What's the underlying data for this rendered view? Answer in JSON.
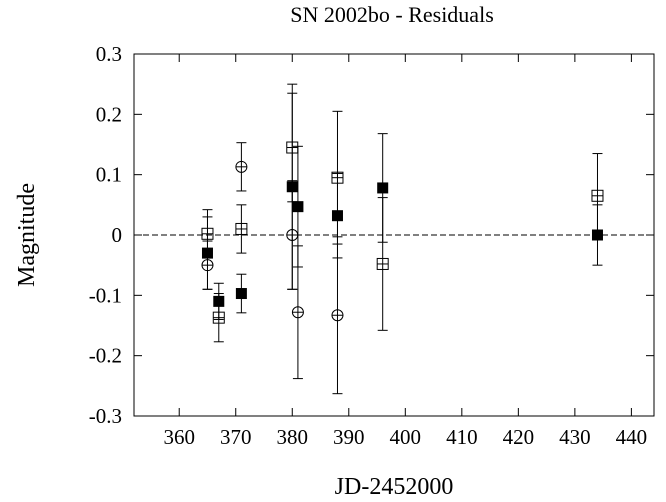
{
  "chart_data": {
    "type": "scatter",
    "title": "SN 2002bo - Residuals",
    "xlabel": "JD-2452000",
    "ylabel": "Magnitude",
    "xlim": [
      352,
      444
    ],
    "ylim": [
      -0.3,
      0.3
    ],
    "xticks": [
      360,
      370,
      380,
      390,
      400,
      410,
      420,
      430,
      440
    ],
    "yticks": [
      0.3,
      0.2,
      0.1,
      0,
      -0.1,
      -0.2,
      -0.3
    ],
    "xtick_labels": [
      "360",
      "370",
      "380",
      "390",
      "400",
      "410",
      "420",
      "430",
      "440"
    ],
    "ytick_labels": [
      "0.3",
      "0.2",
      "0.1",
      "0",
      "-0.1",
      "-0.2",
      "-0.3"
    ],
    "reference_line": 0,
    "grid": false,
    "series": [
      {
        "marker": "filled-square",
        "points": [
          {
            "x": 365,
            "y": -0.03,
            "err": 0.06
          },
          {
            "x": 367,
            "y": -0.11,
            "err": 0.03
          },
          {
            "x": 371,
            "y": -0.097,
            "err": 0.032
          },
          {
            "x": 380,
            "y": 0.08,
            "err": 0.17
          },
          {
            "x": 381,
            "y": 0.047,
            "err": 0.1
          },
          {
            "x": 388,
            "y": 0.032,
            "err": 0.07
          },
          {
            "x": 396,
            "y": 0.078,
            "err": 0.09
          },
          {
            "x": 434,
            "y": 0.0,
            "err": 0.05
          }
        ]
      },
      {
        "marker": "open-square",
        "points": [
          {
            "x": 365,
            "y": 0.002,
            "err": 0.04
          },
          {
            "x": 367,
            "y": -0.137,
            "err": 0.04
          },
          {
            "x": 371,
            "y": 0.01,
            "err": 0.04
          },
          {
            "x": 380,
            "y": 0.145,
            "err": 0.09
          },
          {
            "x": 388,
            "y": 0.095,
            "err": 0.11
          },
          {
            "x": 396,
            "y": -0.048,
            "err": 0.11
          },
          {
            "x": 434,
            "y": 0.065,
            "err": 0.07
          }
        ]
      },
      {
        "marker": "open-circle",
        "points": [
          {
            "x": 365,
            "y": -0.05,
            "err": 0.04
          },
          {
            "x": 371,
            "y": 0.113,
            "err": 0.04
          },
          {
            "x": 380,
            "y": 0.0,
            "err": 0.09
          },
          {
            "x": 381,
            "y": -0.128,
            "err": 0.11
          },
          {
            "x": 388,
            "y": -0.133,
            "err": 0.13
          }
        ]
      }
    ]
  }
}
